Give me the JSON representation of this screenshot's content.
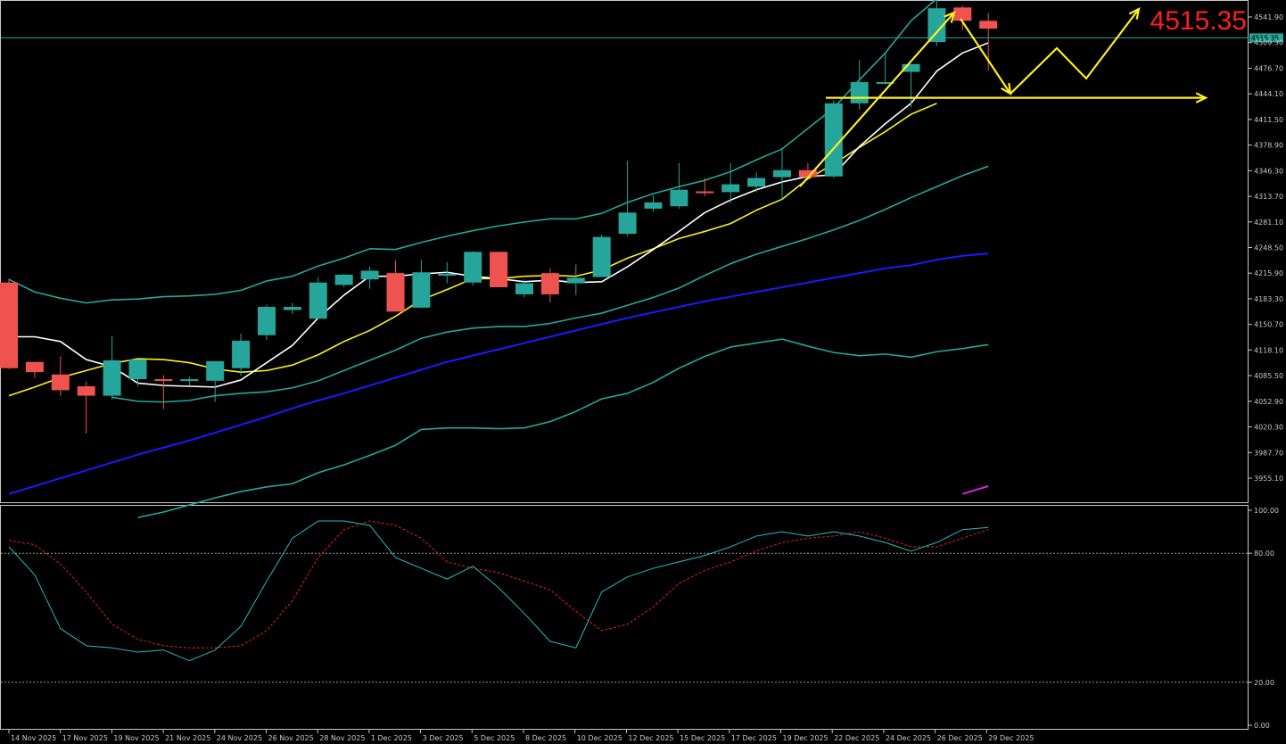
{
  "chart_data": {
    "type": "candlestick",
    "symbol_price_label": "4515.35",
    "current_price": 4515.35,
    "current_price_tag": "4515.35",
    "price_axis": {
      "range": [
        3930,
        4565
      ],
      "ticks": [
        "4541.90",
        "4509.30",
        "4476.70",
        "4444.10",
        "4411.50",
        "4378.90",
        "4346.30",
        "4313.70",
        "4281.10",
        "4248.50",
        "4215.90",
        "4183.30",
        "4150.70",
        "4118.10",
        "4085.50",
        "4052.90",
        "4020.30",
        "3987.70",
        "3955.10"
      ]
    },
    "date_labels": [
      "14 Nov 2025",
      "17 Nov 2025",
      "19 Nov 2025",
      "21 Nov 2025",
      "24 Nov 2025",
      "26 Nov 2025",
      "28 Nov 2025",
      "1 Dec 2025",
      "3 Dec 2025",
      "5 Dec 2025",
      "8 Dec 2025",
      "10 Dec 2025",
      "12 Dec 2025",
      "15 Dec 2025",
      "17 Dec 2025",
      "19 Dec 2025",
      "22 Dec 2025",
      "24 Dec 2025",
      "26 Dec 2025",
      "29 Dec 2025"
    ],
    "candles": [
      [
        4204,
        4209,
        4094,
        4095
      ],
      [
        4103,
        4103,
        4083,
        4090
      ],
      [
        4087,
        4110,
        4060,
        4067
      ],
      [
        4072,
        4078,
        4012,
        4060
      ],
      [
        4060,
        4136,
        4055,
        4105
      ],
      [
        4081,
        4106,
        4072,
        4106
      ],
      [
        4081,
        4086,
        4043,
        4080
      ],
      [
        4081,
        4084,
        4073,
        4081
      ],
      [
        4079,
        4100,
        4052,
        4104
      ],
      [
        4095,
        4139,
        4085,
        4130
      ],
      [
        4137,
        4176,
        4131,
        4173
      ],
      [
        4169,
        4178,
        4164,
        4173
      ],
      [
        4158,
        4211,
        4158,
        4204
      ],
      [
        4201,
        4215,
        4198,
        4214
      ],
      [
        4208,
        4224,
        4196,
        4219
      ],
      [
        4216,
        4232,
        4169,
        4167
      ],
      [
        4172,
        4233,
        4172,
        4217
      ],
      [
        4214,
        4230,
        4203,
        4215
      ],
      [
        4204,
        4244,
        4200,
        4243
      ],
      [
        4243,
        4243,
        4198,
        4198
      ],
      [
        4189,
        4208,
        4185,
        4203
      ],
      [
        4216,
        4222,
        4179,
        4189
      ],
      [
        4203,
        4227,
        4188,
        4210
      ],
      [
        4211,
        4265,
        4212,
        4262
      ],
      [
        4266,
        4359,
        4263,
        4293
      ],
      [
        4298,
        4315,
        4294,
        4306
      ],
      [
        4301,
        4356,
        4298,
        4322
      ],
      [
        4320,
        4337,
        4314,
        4318
      ],
      [
        4319,
        4356,
        4305,
        4329
      ],
      [
        4326,
        4344,
        4319,
        4337
      ],
      [
        4338,
        4375,
        4310,
        4347
      ],
      [
        4347,
        4356,
        4338,
        4338
      ],
      [
        4339,
        4436,
        4337,
        4432
      ],
      [
        4432,
        4487,
        4424,
        4459
      ],
      [
        4458,
        4496,
        4456,
        4459
      ],
      [
        4472,
        4482,
        4427,
        4482
      ],
      [
        4510,
        4566,
        4505,
        4553
      ],
      [
        4554,
        4556,
        4525,
        4537
      ],
      [
        4537,
        4547,
        4474,
        4527
      ]
    ],
    "indicators": {
      "ma_fast_white": [
        4135,
        4135,
        4129,
        4106,
        4097,
        4076,
        4073,
        4072,
        4071,
        4080,
        4102,
        4124,
        4159,
        4188,
        4212,
        4212,
        4215,
        4217,
        4212,
        4209,
        4205,
        4207,
        4204,
        4205,
        4224,
        4246,
        4269,
        4293,
        4309,
        4322,
        4332,
        4339,
        4341,
        4377,
        4406,
        4432,
        4473,
        4496,
        4509
      ],
      "ma_mid_yellow": [
        4060,
        4071,
        4083,
        4092,
        4101,
        4107,
        4106,
        4102,
        4094,
        4090,
        4092,
        4099,
        4112,
        4129,
        4143,
        4161,
        4182,
        4195,
        4209,
        4209,
        4212,
        4213,
        4212,
        4220,
        4235,
        4247,
        4260,
        4269,
        4279,
        4296,
        4310,
        4336,
        4355,
        4376,
        4396,
        4418,
        4432
      ],
      "ma_slow_blue": [
        3935,
        3945,
        3955,
        3965,
        3975,
        3985,
        3994,
        4003,
        4013,
        4023,
        4033,
        4044,
        4054,
        4063,
        4073,
        4083,
        4093,
        4103,
        4111,
        4119,
        4127,
        4135,
        4143,
        4151,
        4159,
        4166,
        4173,
        4180,
        4186,
        4192,
        4198,
        4204,
        4210,
        4216,
        4222,
        4226,
        4233,
        4238,
        4241
      ],
      "bb_upper": [
        4208,
        4192,
        4184,
        4178,
        4182,
        4183,
        4186,
        4187,
        4189,
        4194,
        4206,
        4212,
        4225,
        4235,
        4247,
        4246,
        4255,
        4263,
        4270,
        4276,
        4281,
        4285,
        4285,
        4292,
        4306,
        4317,
        4326,
        4334,
        4345,
        4360,
        4374,
        4400,
        4426,
        4462,
        4496,
        4537,
        4565
      ],
      "bb_middle": [
        4058,
        4053,
        4052,
        4054,
        4060,
        4063,
        4065,
        4070,
        4079,
        4092,
        4105,
        4118,
        4133,
        4141,
        4146,
        4148,
        4148,
        4152,
        4159,
        4165,
        4175,
        4185,
        4197,
        4213,
        4228,
        4240,
        4250,
        4260,
        4271,
        4283,
        4297,
        4312,
        4326,
        4340,
        4352
      ],
      "bb_lower": [
        3905,
        3912,
        3921,
        3930,
        3938,
        3944,
        3948,
        3962,
        3972,
        3984,
        3997,
        4017,
        4019,
        4019,
        4018,
        4019,
        4027,
        4040,
        4056,
        4063,
        4077,
        4095,
        4110,
        4122,
        4127,
        4132,
        4123,
        4115,
        4111,
        4113,
        4109,
        4116,
        4120,
        4125
      ],
      "magenta_line": [
        3935,
        3945
      ]
    },
    "oscillator": {
      "range": [
        0,
        100
      ],
      "ticks": [
        "100.00",
        "80.00",
        "20.00",
        "0.00"
      ],
      "levels": [
        80,
        20
      ],
      "main_cyan": [
        83,
        70,
        45,
        37,
        36,
        34,
        35,
        30,
        35,
        46,
        67,
        87,
        95,
        95,
        93,
        78,
        73,
        68,
        74,
        64,
        52,
        39,
        36,
        62,
        69,
        73,
        76,
        79,
        83,
        88,
        90,
        88,
        90,
        88,
        85,
        81,
        85,
        91,
        92
      ],
      "signal_red": [
        86,
        84,
        75,
        62,
        47,
        40,
        37,
        36,
        36,
        37,
        44,
        58,
        78,
        91,
        95,
        93,
        87,
        76,
        73,
        71,
        67,
        63,
        53,
        44,
        47,
        55,
        66,
        72,
        76,
        81,
        85,
        87,
        88,
        90,
        87,
        83,
        83,
        87,
        91
      ]
    },
    "annotations": {
      "horizontal_arrow_level": 4439,
      "zigzag_forecast": "yellow projection arrows"
    }
  }
}
